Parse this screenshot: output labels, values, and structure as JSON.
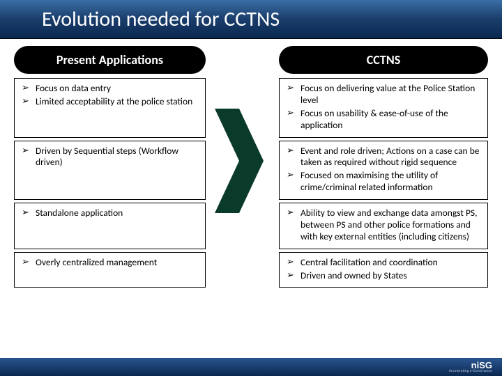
{
  "title": "Evolution needed for CCTNS",
  "left_header": "Present Applications",
  "right_header": "CCTNS",
  "arrow_color": "#0a3a2a",
  "rows": [
    {
      "left": [
        "Focus on data entry",
        "Limited acceptability at the police station"
      ],
      "right": [
        "Focus on delivering value at the Police Station level",
        "Focus on usability & ease-of-use of the application"
      ]
    },
    {
      "left": [
        "Driven by Sequential steps (Workflow driven)"
      ],
      "right": [
        "Event and role driven; Actions on a case can be taken as required without rigid sequence",
        "Focused on maximising the utility of crime/criminal related information"
      ]
    },
    {
      "left": [
        "Standalone application"
      ],
      "right": [
        "Ability to view and exchange data amongst PS, between PS and other police formations and with key external entities (including citizens)"
      ]
    },
    {
      "left": [
        "Overly centralized management"
      ],
      "right": [
        "Central facilitation and coordination",
        "Driven and owned by States"
      ]
    }
  ],
  "logo_main": "niSG",
  "logo_sub": "Accelerating e-Governance"
}
